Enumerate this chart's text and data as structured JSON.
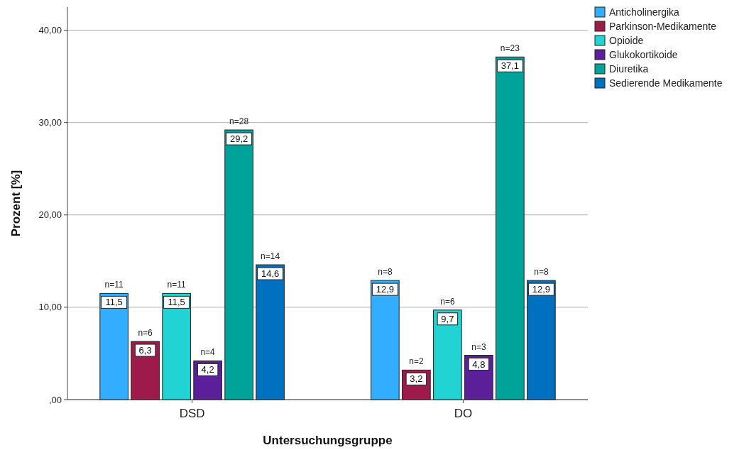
{
  "chart_data": {
    "type": "bar",
    "xlabel": "Untersuchungsgruppe",
    "ylabel": "Prozent [%]",
    "categories": [
      "DSD",
      "DO"
    ],
    "series": [
      {
        "name": "Anticholinergika",
        "color": "#33adff",
        "values": [
          11.5,
          12.9
        ],
        "value_labels": [
          "11,5",
          "12,9"
        ]
      },
      {
        "name": "Parkinson-Medikamente",
        "color": "#9e1a4a",
        "values": [
          6.3,
          3.2
        ],
        "value_labels": [
          "6,3",
          "3,2"
        ]
      },
      {
        "name": "Opioide",
        "color": "#22d3d3",
        "values": [
          11.5,
          9.7
        ],
        "value_labels": [
          "11,5",
          "9,7"
        ]
      },
      {
        "name": "Glukokortikoide",
        "color": "#5a1f99",
        "values": [
          4.2,
          4.8
        ],
        "value_labels": [
          "4,2",
          "4,8"
        ]
      },
      {
        "name": "Diuretika",
        "color": "#00a39a",
        "values": [
          29.2,
          37.1
        ],
        "value_labels": [
          "29,2",
          "37,1"
        ]
      },
      {
        "name": "Sedierende Medikamente",
        "color": "#0070c0",
        "values": [
          14.6,
          12.9
        ],
        "value_labels": [
          "14,6",
          "12,9"
        ]
      }
    ],
    "ylim": [
      0,
      42.5
    ],
    "yticks": [
      {
        "value": 0,
        "label": ",00"
      },
      {
        "value": 10,
        "label": "10,00"
      },
      {
        "value": 20,
        "label": "20,00"
      },
      {
        "value": 30,
        "label": "30,00"
      },
      {
        "value": 40,
        "label": "40,00"
      }
    ],
    "grid": "y",
    "legend": "top right",
    "annotations": [
      "n=11",
      "n=8",
      "n=6",
      "n=2",
      "n=11",
      "n=6",
      "n=4",
      "n=3",
      "n=28",
      "n=23",
      "n=14",
      "n=8"
    ]
  }
}
